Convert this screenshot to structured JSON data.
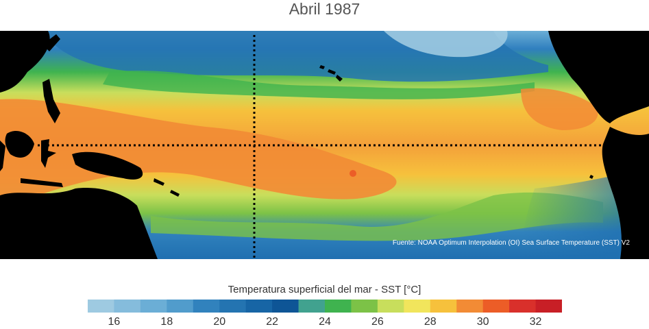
{
  "title": "Abril 1987",
  "source_note": "Fuente: NOAA Optimum Interpolation (OI) Sea Surface Temperature (SST) V2",
  "colorbar": {
    "label": "Temperatura superficial del mar - SST  [°C]",
    "colors": [
      "#9ecae1",
      "#85bcdc",
      "#6baed6",
      "#519ccc",
      "#3182bd",
      "#2474b1",
      "#1765a5",
      "#0e5596",
      "#41a28f",
      "#3fb34f",
      "#7cc247",
      "#c8de5c",
      "#f1e55c",
      "#f6c13c",
      "#f28b35",
      "#ec5d27",
      "#d9302b",
      "#c81f26"
    ],
    "ticks": [
      "16",
      "18",
      "20",
      "22",
      "24",
      "26",
      "28",
      "30",
      "32"
    ],
    "range": [
      15,
      33
    ]
  }
}
